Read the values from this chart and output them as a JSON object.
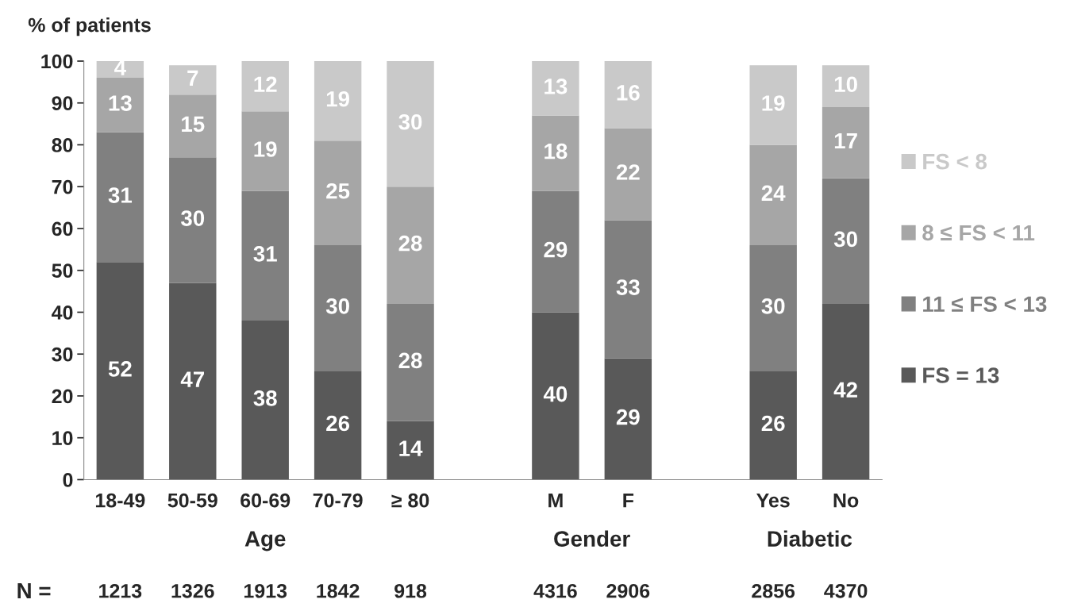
{
  "chart_data": {
    "type": "bar",
    "stacked": true,
    "ylabel": "% of patients",
    "categories": [
      "18-49",
      "50-59",
      "60-69",
      "70-79",
      "≥ 80",
      null,
      "M",
      "F",
      null,
      "Yes",
      "No"
    ],
    "series": [
      {
        "name": "FS = 13",
        "color": "#595959",
        "values": [
          52,
          47,
          38,
          26,
          14,
          null,
          40,
          29,
          null,
          26,
          42
        ]
      },
      {
        "name": "11 ≤ FS < 13",
        "color": "#808080",
        "values": [
          31,
          30,
          31,
          30,
          28,
          null,
          29,
          33,
          null,
          30,
          30
        ]
      },
      {
        "name": "8 ≤ FS < 11",
        "color": "#a6a6a6",
        "values": [
          13,
          15,
          19,
          25,
          28,
          null,
          18,
          22,
          null,
          24,
          17
        ]
      },
      {
        "name": "FS < 8",
        "color": "#c9c9c9",
        "values": [
          4,
          7,
          12,
          19,
          30,
          null,
          13,
          16,
          null,
          19,
          10
        ]
      }
    ],
    "ylim": [
      0,
      100
    ],
    "yticks": [
      0,
      10,
      20,
      30,
      40,
      50,
      60,
      70,
      80,
      90,
      100
    ],
    "data_labels": true,
    "legend": "right",
    "grid": false,
    "annotations": [
      "Age",
      "Gender",
      "Diabetic",
      "N =",
      "1213",
      "1326",
      "1913",
      "1842",
      "918",
      "4316",
      "2906",
      "2856",
      "4370"
    ]
  }
}
